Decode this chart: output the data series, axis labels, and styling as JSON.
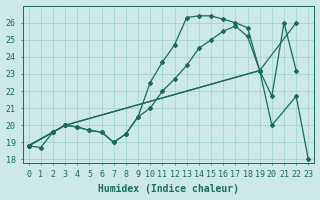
{
  "xlabel": "Humidex (Indice chaleur)",
  "bg_color": "#cce8e8",
  "grid_color": "#a8d4d4",
  "line_color": "#1a6b5a",
  "xlim": [
    -0.5,
    23.5
  ],
  "ylim": [
    17.8,
    27.0
  ],
  "yticks": [
    18,
    19,
    20,
    21,
    22,
    23,
    24,
    25,
    26
  ],
  "xticks": [
    0,
    1,
    2,
    3,
    4,
    5,
    6,
    7,
    8,
    9,
    10,
    11,
    12,
    13,
    14,
    15,
    16,
    17,
    18,
    19,
    20,
    21,
    22,
    23
  ],
  "line1_x": [
    0,
    1,
    2,
    3,
    4,
    5,
    6,
    7,
    8,
    9,
    10,
    11,
    12,
    13,
    14,
    15,
    16,
    17,
    18,
    19,
    20,
    21,
    22,
    23
  ],
  "line1_y": [
    18.8,
    18.7,
    19.6,
    20.0,
    19.9,
    19.7,
    19.6,
    19.0,
    19.5,
    20.5,
    22.5,
    23.7,
    24.7,
    26.3,
    26.4,
    26.4,
    26.2,
    26.0,
    25.7,
    23.2,
    21.7,
    26.0,
    23.2,
    null
  ],
  "line2_x": [
    0,
    2,
    3,
    4,
    5,
    6,
    7,
    8,
    9,
    10,
    11,
    12,
    13,
    14,
    15,
    16,
    17,
    18,
    19
  ],
  "line2_y": [
    18.8,
    19.6,
    20.0,
    19.9,
    19.7,
    19.6,
    19.0,
    19.5,
    20.5,
    21.0,
    22.0,
    22.7,
    23.5,
    24.5,
    25.0,
    25.5,
    25.8,
    25.2,
    23.2
  ],
  "line3_x": [
    0,
    2,
    3,
    19,
    20,
    22,
    23
  ],
  "line3_y": [
    18.8,
    19.6,
    20.0,
    23.2,
    20.0,
    21.7,
    18.0
  ],
  "line4_x": [
    0,
    2,
    3,
    19,
    22
  ],
  "line4_y": [
    18.8,
    19.6,
    20.0,
    23.2,
    26.0
  ],
  "fontsize_label": 7,
  "fontsize_tick": 6
}
